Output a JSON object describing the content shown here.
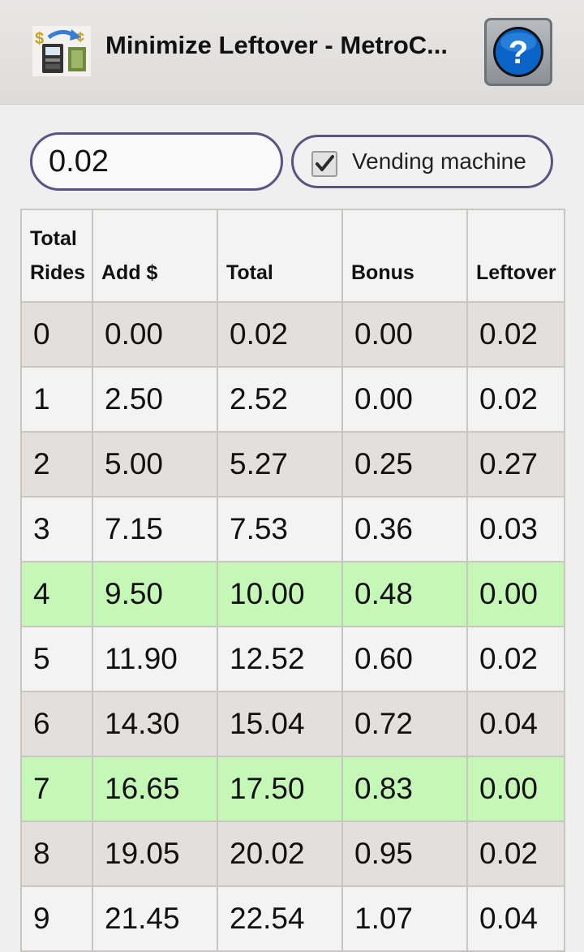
{
  "app": {
    "title": "Minimize Leftover - MetroC...",
    "help_label": "?"
  },
  "form": {
    "amount_value": "0.02",
    "vending_label": "Vending machine",
    "vending_checked": true
  },
  "table": {
    "headers": [
      [
        "Total",
        "Rides"
      ],
      [
        "Add $"
      ],
      [
        "Total"
      ],
      [
        "Bonus"
      ],
      [
        "Leftover"
      ]
    ],
    "rows": [
      {
        "cells": [
          "0",
          "0.00",
          "0.02",
          "0.00",
          "0.02"
        ],
        "highlight": false
      },
      {
        "cells": [
          "1",
          "2.50",
          "2.52",
          "0.00",
          "0.02"
        ],
        "highlight": false
      },
      {
        "cells": [
          "2",
          "5.00",
          "5.27",
          "0.25",
          "0.27"
        ],
        "highlight": false
      },
      {
        "cells": [
          "3",
          "7.15",
          "7.53",
          "0.36",
          "0.03"
        ],
        "highlight": false
      },
      {
        "cells": [
          "4",
          "9.50",
          "10.00",
          "0.48",
          "0.00"
        ],
        "highlight": true
      },
      {
        "cells": [
          "5",
          "11.90",
          "12.52",
          "0.60",
          "0.02"
        ],
        "highlight": false
      },
      {
        "cells": [
          "6",
          "14.30",
          "15.04",
          "0.72",
          "0.04"
        ],
        "highlight": false
      },
      {
        "cells": [
          "7",
          "16.65",
          "17.50",
          "0.83",
          "0.00"
        ],
        "highlight": true
      },
      {
        "cells": [
          "8",
          "19.05",
          "20.02",
          "0.95",
          "0.02"
        ],
        "highlight": false
      },
      {
        "cells": [
          "9",
          "21.45",
          "22.54",
          "1.07",
          "0.04"
        ],
        "highlight": false
      }
    ]
  },
  "colors": {
    "highlight_row": "#c5f7b6",
    "alt_row": "#e2dfdc",
    "plain_row": "#f3f3f3",
    "input_border": "#5a5483",
    "help_blue": "#0a64c8"
  }
}
